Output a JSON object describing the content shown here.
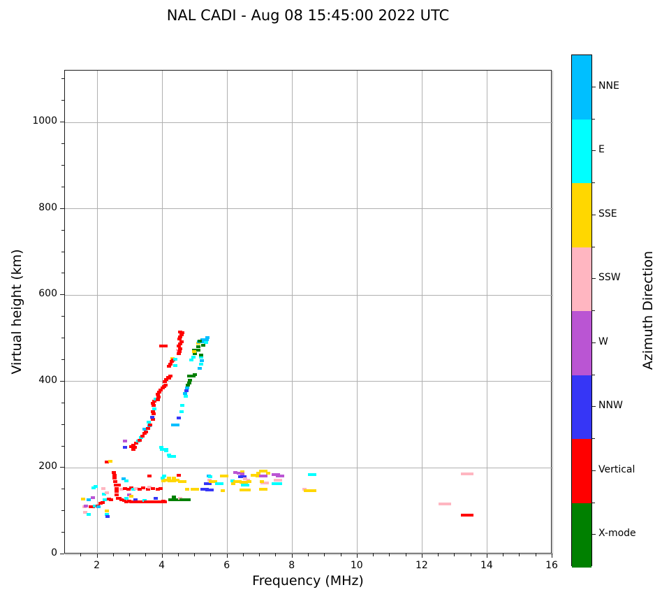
{
  "chart_data": {
    "type": "scatter",
    "title": "NAL CADI - Aug 08 15:45:00 2022 UTC",
    "xlabel": "Frequency (MHz)",
    "ylabel": "Virtual height (km)",
    "xlim": [
      1,
      16
    ],
    "ylim": [
      0,
      1120
    ],
    "xticks": [
      2,
      4,
      6,
      8,
      10,
      12,
      14,
      16
    ],
    "yticks": [
      0,
      200,
      400,
      600,
      800,
      1000
    ],
    "x_minor_step": 0.5,
    "y_minor_step": 50,
    "grid": true,
    "grid_color": "#b0b0b0",
    "spine_color": "#1a1a1a",
    "marker": {
      "w": 6,
      "h": 4
    },
    "colorbar": {
      "title": "Azimuth Direction",
      "position": "right",
      "categories": [
        {
          "key": "D",
          "label": "NNE",
          "color": "#00BFFF"
        },
        {
          "key": "C",
          "label": "E",
          "color": "#00FFFF"
        },
        {
          "key": "G",
          "label": "SSE",
          "color": "#FFD700"
        },
        {
          "key": "P",
          "label": "SSW",
          "color": "#FFB6C1"
        },
        {
          "key": "M",
          "label": "W",
          "color": "#BA55D3"
        },
        {
          "key": "B",
          "label": "NNW",
          "color": "#3636F6"
        },
        {
          "key": "R",
          "label": "Vertical",
          "color": "#FF0000"
        },
        {
          "key": "X",
          "label": "X-mode",
          "color": "#008000"
        }
      ]
    },
    "points": [
      [
        1.55,
        128,
        "G"
      ],
      [
        1.6,
        110,
        "P"
      ],
      [
        1.65,
        112,
        "M"
      ],
      [
        1.62,
        97,
        "P"
      ],
      [
        1.73,
        126,
        "D"
      ],
      [
        1.72,
        92,
        "C"
      ],
      [
        1.8,
        110,
        "R"
      ],
      [
        1.86,
        110,
        "R"
      ],
      [
        1.86,
        131,
        "M"
      ],
      [
        1.93,
        112,
        "C"
      ],
      [
        2.0,
        112,
        "R"
      ],
      [
        1.95,
        157,
        "C"
      ],
      [
        1.88,
        153,
        "C"
      ],
      [
        2.03,
        110,
        "D"
      ],
      [
        2.1,
        118,
        "R"
      ],
      [
        2.16,
        120,
        "R"
      ],
      [
        2.22,
        126,
        "C"
      ],
      [
        2.3,
        100,
        "G"
      ],
      [
        2.3,
        93,
        "C"
      ],
      [
        2.32,
        88,
        "B"
      ],
      [
        2.35,
        128,
        "R"
      ],
      [
        2.42,
        127,
        "R"
      ],
      [
        2.2,
        140,
        "C"
      ],
      [
        2.28,
        143,
        "P"
      ],
      [
        2.18,
        152,
        "P"
      ],
      [
        2.3,
        213,
        "R"
      ],
      [
        2.4,
        215,
        "G"
      ],
      [
        2.5,
        190,
        "R"
      ],
      [
        2.52,
        183,
        "R"
      ],
      [
        2.53,
        176,
        "R"
      ],
      [
        2.55,
        168,
        "R"
      ],
      [
        2.56,
        160,
        "R"
      ],
      [
        2.58,
        152,
        "R"
      ],
      [
        2.6,
        145,
        "R"
      ],
      [
        2.6,
        137,
        "R"
      ],
      [
        2.63,
        130,
        "R"
      ],
      [
        2.65,
        160,
        "R"
      ],
      [
        2.68,
        130,
        "R"
      ],
      [
        2.75,
        126,
        "R"
      ],
      [
        2.82,
        124,
        "R"
      ],
      [
        2.9,
        122,
        "R"
      ],
      [
        2.9,
        130,
        "C"
      ],
      [
        2.97,
        138,
        "M"
      ],
      [
        2.98,
        123,
        "R"
      ],
      [
        3.05,
        135,
        "G"
      ],
      [
        3.05,
        122,
        "R"
      ],
      [
        3.12,
        121,
        "R"
      ],
      [
        3.18,
        127,
        "B"
      ],
      [
        3.2,
        122,
        "R"
      ],
      [
        3.28,
        121,
        "R"
      ],
      [
        3.35,
        122,
        "R"
      ],
      [
        3.42,
        121,
        "R"
      ],
      [
        3.45,
        124,
        "C"
      ],
      [
        3.5,
        122,
        "R"
      ],
      [
        3.58,
        121,
        "R"
      ],
      [
        3.65,
        122,
        "R"
      ],
      [
        3.72,
        121,
        "R"
      ],
      [
        3.8,
        130,
        "B"
      ],
      [
        3.8,
        122,
        "R"
      ],
      [
        3.88,
        121,
        "R"
      ],
      [
        3.95,
        122,
        "R"
      ],
      [
        4.02,
        123,
        "R"
      ],
      [
        4.08,
        122,
        "R"
      ],
      [
        2.75,
        150,
        "P"
      ],
      [
        2.85,
        152,
        "R"
      ],
      [
        2.95,
        150,
        "R"
      ],
      [
        3.05,
        153,
        "R"
      ],
      [
        3.1,
        150,
        "C"
      ],
      [
        3.2,
        152,
        "P"
      ],
      [
        3.3,
        150,
        "R"
      ],
      [
        3.4,
        153,
        "R"
      ],
      [
        3.55,
        151,
        "R"
      ],
      [
        3.6,
        155,
        "P"
      ],
      [
        3.7,
        152,
        "R"
      ],
      [
        3.85,
        150,
        "R"
      ],
      [
        3.95,
        152,
        "R"
      ],
      [
        2.8,
        174,
        "D"
      ],
      [
        2.9,
        170,
        "C"
      ],
      [
        3.6,
        182,
        "R"
      ],
      [
        4.0,
        177,
        "C"
      ],
      [
        4.03,
        170,
        "G"
      ],
      [
        4.05,
        182,
        "C"
      ],
      [
        4.1,
        172,
        "G"
      ],
      [
        4.2,
        176,
        "G"
      ],
      [
        4.28,
        170,
        "G",
        2
      ],
      [
        4.35,
        176,
        "G"
      ],
      [
        4.45,
        172,
        "G"
      ],
      [
        4.6,
        168,
        "G",
        2
      ],
      [
        4.5,
        183,
        "R"
      ],
      [
        4.3,
        127,
        "X",
        2
      ],
      [
        4.45,
        126,
        "X",
        2
      ],
      [
        4.55,
        130,
        "P"
      ],
      [
        4.65,
        127,
        "X",
        2
      ],
      [
        4.8,
        126,
        "X"
      ],
      [
        4.35,
        132,
        "X"
      ],
      [
        4.75,
        151,
        "G"
      ],
      [
        5.0,
        151,
        "G",
        2
      ],
      [
        5.3,
        150,
        "B",
        2
      ],
      [
        5.45,
        149,
        "B",
        2
      ],
      [
        5.35,
        163,
        "B"
      ],
      [
        5.45,
        164,
        "B"
      ],
      [
        5.42,
        181,
        "D"
      ],
      [
        5.48,
        179,
        "C"
      ],
      [
        5.45,
        172,
        "P"
      ],
      [
        5.55,
        168,
        "G",
        2
      ],
      [
        5.75,
        164,
        "C",
        2
      ],
      [
        5.9,
        181,
        "G",
        2
      ],
      [
        5.85,
        148,
        "G"
      ],
      [
        6.15,
        170,
        "C"
      ],
      [
        6.17,
        163,
        "G"
      ],
      [
        6.25,
        189,
        "M"
      ],
      [
        6.35,
        188,
        "M"
      ],
      [
        6.45,
        191,
        "G"
      ],
      [
        6.45,
        186,
        "M"
      ],
      [
        6.45,
        179,
        "B",
        2
      ],
      [
        6.55,
        175,
        "P"
      ],
      [
        6.62,
        172,
        "P"
      ],
      [
        6.3,
        168,
        "G",
        2
      ],
      [
        6.5,
        167,
        "G",
        2
      ],
      [
        6.68,
        168,
        "G"
      ],
      [
        6.55,
        161,
        "C",
        2
      ],
      [
        6.5,
        149,
        "G",
        2
      ],
      [
        6.65,
        149,
        "G"
      ],
      [
        6.85,
        183,
        "G",
        2
      ],
      [
        7.0,
        181,
        "G",
        2
      ],
      [
        6.95,
        187,
        "G"
      ],
      [
        7.1,
        192,
        "G",
        2
      ],
      [
        7.1,
        181,
        "M",
        2
      ],
      [
        7.15,
        165,
        "P",
        2
      ],
      [
        7.05,
        169,
        "G"
      ],
      [
        7.1,
        150,
        "G",
        2
      ],
      [
        7.25,
        188,
        "G"
      ],
      [
        7.42,
        164,
        "C"
      ],
      [
        7.5,
        184,
        "M",
        2
      ],
      [
        7.62,
        181,
        "M",
        2
      ],
      [
        7.55,
        172,
        "P",
        2
      ],
      [
        7.55,
        163,
        "C",
        2
      ],
      [
        8.6,
        184,
        "C",
        2
      ],
      [
        8.38,
        150,
        "P"
      ],
      [
        8.55,
        147,
        "G",
        3
      ],
      [
        12.7,
        117,
        "P",
        3
      ],
      [
        13.38,
        186,
        "P",
        3
      ],
      [
        13.38,
        90,
        "R",
        3
      ],
      [
        2.85,
        262,
        "M"
      ],
      [
        2.84,
        247,
        "B"
      ],
      [
        3.05,
        250,
        "R"
      ],
      [
        3.1,
        253,
        "R"
      ],
      [
        3.1,
        243,
        "R"
      ],
      [
        3.15,
        247,
        "R"
      ],
      [
        3.2,
        258,
        "R"
      ],
      [
        3.25,
        262,
        "C"
      ],
      [
        3.3,
        264,
        "R"
      ],
      [
        3.35,
        270,
        "C"
      ],
      [
        3.38,
        274,
        "R"
      ],
      [
        3.45,
        280,
        "R"
      ],
      [
        3.5,
        284,
        "R"
      ],
      [
        3.45,
        290,
        "D"
      ],
      [
        3.55,
        292,
        "R"
      ],
      [
        3.6,
        298,
        "D"
      ],
      [
        3.58,
        306,
        "C"
      ],
      [
        3.62,
        300,
        "R"
      ],
      [
        3.7,
        312,
        "R"
      ],
      [
        3.68,
        318,
        "B"
      ],
      [
        3.72,
        325,
        "R"
      ],
      [
        3.7,
        330,
        "R"
      ],
      [
        3.75,
        337,
        "C"
      ],
      [
        3.72,
        345,
        "R"
      ],
      [
        3.7,
        350,
        "R"
      ],
      [
        3.75,
        355,
        "R"
      ],
      [
        3.8,
        360,
        "C"
      ],
      [
        3.85,
        358,
        "R"
      ],
      [
        3.88,
        364,
        "R"
      ],
      [
        3.85,
        370,
        "R"
      ],
      [
        3.9,
        375,
        "R"
      ],
      [
        3.95,
        380,
        "R"
      ],
      [
        4.0,
        385,
        "R"
      ],
      [
        4.05,
        388,
        "R"
      ],
      [
        4.1,
        392,
        "R"
      ],
      [
        4.08,
        400,
        "R"
      ],
      [
        4.12,
        405,
        "R"
      ],
      [
        4.18,
        410,
        "R"
      ],
      [
        4.25,
        412,
        "R"
      ],
      [
        4.2,
        408,
        "R"
      ],
      [
        4.2,
        435,
        "R"
      ],
      [
        4.25,
        440,
        "R"
      ],
      [
        4.28,
        446,
        "R"
      ],
      [
        4.3,
        453,
        "G"
      ],
      [
        4.33,
        450,
        "R"
      ],
      [
        4.4,
        452,
        "C"
      ],
      [
        4.4,
        437,
        "C"
      ],
      [
        4.48,
        472,
        "P"
      ],
      [
        4.5,
        465,
        "R"
      ],
      [
        4.52,
        470,
        "R"
      ],
      [
        4.55,
        476,
        "R"
      ],
      [
        4.5,
        482,
        "R"
      ],
      [
        4.55,
        487,
        "R"
      ],
      [
        4.58,
        492,
        "R"
      ],
      [
        4.52,
        498,
        "R"
      ],
      [
        4.55,
        503,
        "R"
      ],
      [
        4.58,
        508,
        "R"
      ],
      [
        4.55,
        515,
        "R"
      ],
      [
        4.62,
        513,
        "R"
      ],
      [
        4.03,
        482,
        "R",
        2
      ],
      [
        3.97,
        247,
        "C"
      ],
      [
        4.05,
        243,
        "C",
        2
      ],
      [
        4.12,
        240,
        "C"
      ],
      [
        4.2,
        230,
        "C"
      ],
      [
        4.28,
        227,
        "C",
        2
      ],
      [
        4.4,
        300,
        "D",
        2
      ],
      [
        4.5,
        316,
        "B"
      ],
      [
        4.58,
        330,
        "C"
      ],
      [
        4.6,
        345,
        "C"
      ],
      [
        4.72,
        365,
        "C"
      ],
      [
        4.7,
        372,
        "D"
      ],
      [
        4.73,
        378,
        "B"
      ],
      [
        4.75,
        385,
        "D"
      ],
      [
        4.78,
        392,
        "X"
      ],
      [
        4.82,
        397,
        "X"
      ],
      [
        4.85,
        403,
        "X"
      ],
      [
        4.9,
        412,
        "X",
        2
      ],
      [
        5.0,
        416,
        "X"
      ],
      [
        4.88,
        450,
        "C"
      ],
      [
        4.95,
        457,
        "C"
      ],
      [
        5.0,
        465,
        "X"
      ],
      [
        5.05,
        472,
        "X",
        2
      ],
      [
        5.1,
        480,
        "X"
      ],
      [
        5.15,
        430,
        "D"
      ],
      [
        5.2,
        440,
        "C"
      ],
      [
        5.22,
        448,
        "D"
      ],
      [
        5.18,
        456,
        "C"
      ],
      [
        5.1,
        488,
        "G"
      ],
      [
        4.97,
        470,
        "G"
      ],
      [
        5.2,
        492,
        "D",
        2
      ],
      [
        5.3,
        497,
        "D",
        2
      ],
      [
        5.38,
        502,
        "D"
      ],
      [
        5.35,
        490,
        "C"
      ],
      [
        5.25,
        484,
        "X"
      ],
      [
        5.15,
        494,
        "X"
      ],
      [
        5.2,
        461,
        "X"
      ]
    ]
  }
}
